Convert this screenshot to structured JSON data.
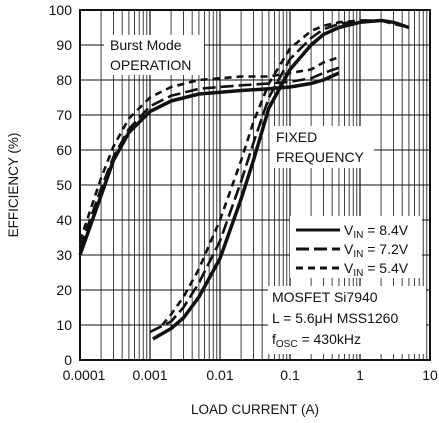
{
  "chart_data": {
    "type": "line",
    "xlabel": "LOAD CURRENT (A)",
    "ylabel": "EFFICIENCY (%)",
    "x_scale": "log",
    "xlim": [
      0.0001,
      10
    ],
    "ylim": [
      0,
      100
    ],
    "grid": true,
    "x_ticks": [
      "0.0001",
      "0.001",
      "0.01",
      "0.1",
      "1",
      "10"
    ],
    "y_ticks": [
      "0",
      "10",
      "20",
      "30",
      "40",
      "50",
      "60",
      "70",
      "80",
      "90",
      "100"
    ],
    "legend_position": "right",
    "series": [
      {
        "name_main": "V",
        "name_sub": "IN",
        "name_value": " = 8.4V",
        "style": "solid",
        "curves": [
          [
            [
              0.0001,
              30
            ],
            [
              0.0002,
              47
            ],
            [
              0.0003,
              57
            ],
            [
              0.0005,
              65
            ],
            [
              0.001,
              71
            ],
            [
              0.002,
              74
            ],
            [
              0.005,
              76
            ],
            [
              0.01,
              76.5
            ],
            [
              0.02,
              77
            ],
            [
              0.05,
              77.5
            ],
            [
              0.1,
              78
            ],
            [
              0.2,
              79
            ],
            [
              0.3,
              80
            ],
            [
              0.5,
              82
            ]
          ],
          [
            [
              0.0011,
              6
            ],
            [
              0.002,
              9
            ],
            [
              0.003,
              12
            ],
            [
              0.005,
              18
            ],
            [
              0.01,
              29
            ],
            [
              0.02,
              46
            ],
            [
              0.03,
              57
            ],
            [
              0.05,
              72
            ],
            [
              0.1,
              83
            ],
            [
              0.2,
              90
            ],
            [
              0.3,
              93
            ],
            [
              0.5,
              95
            ],
            [
              1,
              96.5
            ],
            [
              2,
              97
            ],
            [
              3,
              96.5
            ],
            [
              5,
              95
            ]
          ]
        ]
      },
      {
        "name_main": "V",
        "name_sub": "IN",
        "name_value": " = 7.2V",
        "style": "longdash",
        "curves": [
          [
            [
              0.0001,
              32
            ],
            [
              0.0002,
              49
            ],
            [
              0.0003,
              58
            ],
            [
              0.0005,
              66
            ],
            [
              0.001,
              72.5
            ],
            [
              0.002,
              75.5
            ],
            [
              0.005,
              77.5
            ],
            [
              0.01,
              78
            ],
            [
              0.02,
              78.5
            ],
            [
              0.05,
              79
            ],
            [
              0.1,
              79.5
            ],
            [
              0.2,
              80.5
            ],
            [
              0.3,
              82
            ],
            [
              0.5,
              83.5
            ]
          ],
          [
            [
              0.001,
              8
            ],
            [
              0.002,
              11
            ],
            [
              0.003,
              15
            ],
            [
              0.005,
              22
            ],
            [
              0.01,
              34
            ],
            [
              0.02,
              51
            ],
            [
              0.03,
              62
            ],
            [
              0.05,
              75
            ],
            [
              0.1,
              86
            ],
            [
              0.2,
              92
            ],
            [
              0.3,
              94.5
            ],
            [
              0.5,
              96
            ],
            [
              1,
              97
            ],
            [
              2,
              97
            ],
            [
              3,
              96
            ],
            [
              4,
              95.5
            ]
          ]
        ]
      },
      {
        "name_main": "V",
        "name_sub": "IN",
        "name_value": " = 5.4V",
        "style": "shortdash",
        "curves": [
          [
            [
              0.0001,
              34
            ],
            [
              0.0002,
              52
            ],
            [
              0.0003,
              61
            ],
            [
              0.0005,
              69
            ],
            [
              0.001,
              75
            ],
            [
              0.002,
              78
            ],
            [
              0.005,
              80
            ],
            [
              0.01,
              80.5
            ],
            [
              0.02,
              81
            ],
            [
              0.05,
              81
            ],
            [
              0.1,
              82
            ],
            [
              0.2,
              83
            ],
            [
              0.3,
              85
            ],
            [
              0.5,
              86.5
            ]
          ],
          [
            [
              0.0015,
              10
            ],
            [
              0.002,
              13
            ],
            [
              0.003,
              18
            ],
            [
              0.005,
              26
            ],
            [
              0.01,
              40
            ],
            [
              0.02,
              57
            ],
            [
              0.03,
              68
            ],
            [
              0.05,
              79
            ],
            [
              0.1,
              89
            ],
            [
              0.2,
              94
            ],
            [
              0.3,
              95.5
            ],
            [
              0.5,
              96.5
            ],
            [
              1,
              97
            ],
            [
              1.5,
              97
            ]
          ]
        ]
      }
    ],
    "annotations": {
      "burst": [
        "Burst Mode",
        "OPERATION"
      ],
      "fixed": [
        "FIXED",
        "FREQUENCY"
      ],
      "mosfet": "MOSFET Si7940",
      "inductor": "L = 5.6μH MSS1260",
      "fosc_main": "f",
      "fosc_sub": "OSC",
      "fosc_value": " = 430kHz"
    }
  }
}
